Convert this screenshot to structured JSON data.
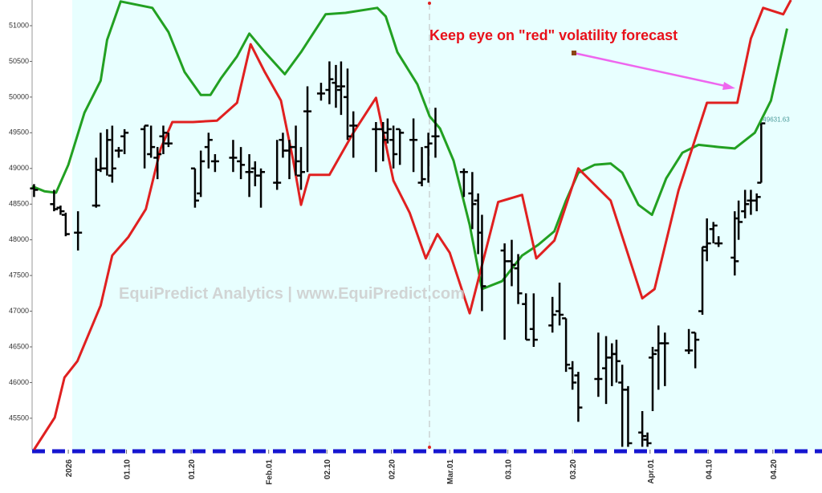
{
  "chart_data": {
    "type": "ohlc",
    "annotation": "Keep eye on \"red\" volatility forecast",
    "watermark": "EquiPredict Analytics | www.EquiPredict.com",
    "xlim": [
      -4.6,
      117.6
    ],
    "ylim": [
      45060,
      51360
    ],
    "yticks": [
      45500,
      46000,
      46500,
      47000,
      47500,
      48000,
      48500,
      49000,
      49500,
      50000,
      50500,
      51000
    ],
    "xticks": [
      {
        "value": 1,
        "label": "2026",
        "color": "#a52a2a"
      },
      {
        "value": 10,
        "label": "01.10"
      },
      {
        "value": 20,
        "label": "01.20"
      },
      {
        "value": 32,
        "label": "Feb.01",
        "color": "#a52a2a"
      },
      {
        "value": 41,
        "label": "02.10"
      },
      {
        "value": 51,
        "label": "02.20"
      },
      {
        "value": 60,
        "label": "Mar.01",
        "color": "#a52a2a"
      },
      {
        "value": 69,
        "label": "03.10"
      },
      {
        "value": 79,
        "label": "03.20"
      },
      {
        "value": 91,
        "label": "Apr.01",
        "color": "#a52a2a"
      },
      {
        "value": 100,
        "label": "04.10"
      },
      {
        "value": 110,
        "label": "04.20"
      }
    ],
    "ohlc": {
      "color": "#000000",
      "x": [
        -4.3,
        -1.2,
        -0.2,
        0.6,
        2.5,
        5.3,
        6.0,
        7.0,
        7.8,
        8.8,
        9.7,
        12.8,
        13.8,
        14.8,
        15.7,
        16.5,
        20.6,
        21.5,
        22.7,
        23.7,
        26.5,
        27.7,
        29.0,
        29.9,
        30.8,
        33.3,
        34.2,
        35.2,
        36.2,
        37.0,
        38.0,
        40.1,
        41.4,
        42.4,
        43.2,
        44.2,
        45.1,
        48.6,
        49.7,
        50.4,
        51.3,
        52.3,
        54.4,
        55.7,
        56.7,
        57.8,
        62.2,
        63.5,
        64.4,
        65.0,
        68.5,
        69.6,
        70.6,
        71.8,
        73.0,
        75.9,
        77.0,
        78.0,
        79.0,
        79.9,
        83.0,
        84.2,
        85.1,
        85.8,
        86.7,
        87.6,
        89.8,
        90.6,
        91.4,
        92.3,
        93.3,
        97.0,
        98.0,
        99.1,
        99.8,
        100.8,
        101.6,
        104.1,
        104.7,
        105.7,
        106.6,
        107.5,
        108.2
      ],
      "open": [
        48720,
        48500,
        48450,
        48350,
        48100,
        48480,
        48980,
        49000,
        48900,
        49250,
        49450,
        49550,
        49200,
        49150,
        49450,
        49350,
        49000,
        48650,
        49300,
        49100,
        49150,
        49100,
        48950,
        49000,
        48900,
        48800,
        49400,
        49250,
        49300,
        48900,
        49800,
        50050,
        50100,
        50200,
        50100,
        50000,
        49600,
        49550,
        49550,
        49500,
        49400,
        49550,
        49400,
        48800,
        49300,
        49450,
        48950,
        48650,
        48550,
        48100,
        47850,
        47700,
        47600,
        47100,
        46750,
        46800,
        47000,
        46900,
        46200,
        46100,
        46050,
        46200,
        46350,
        46400,
        46000,
        45900,
        45300,
        45200,
        46350,
        46450,
        46550,
        46450,
        46700,
        47000,
        47850,
        48150,
        47950,
        47750,
        48300,
        48400,
        48550,
        48550,
        48800
      ],
      "high": [
        48780,
        48700,
        48480,
        48380,
        48400,
        49150,
        49500,
        49550,
        49600,
        49300,
        49550,
        49600,
        49600,
        49300,
        49600,
        49500,
        49000,
        49250,
        49500,
        49200,
        49400,
        49300,
        49200,
        49100,
        49000,
        49400,
        49500,
        49400,
        49600,
        49300,
        50150,
        50200,
        50500,
        50450,
        50500,
        50400,
        49800,
        49650,
        49650,
        49700,
        49600,
        49550,
        49700,
        49300,
        49500,
        49850,
        49000,
        48950,
        48650,
        48350,
        47950,
        48000,
        47800,
        47250,
        47250,
        47200,
        47400,
        46900,
        46300,
        46150,
        46700,
        46650,
        46550,
        46600,
        46250,
        45950,
        45600,
        45300,
        46500,
        46800,
        46700,
        46750,
        46700,
        47900,
        48300,
        48250,
        48050,
        48400,
        48550,
        48700,
        48700,
        48650,
        49631.63
      ],
      "low": [
        48600,
        48400,
        48350,
        48050,
        47850,
        48450,
        48950,
        48900,
        48800,
        49150,
        49200,
        49000,
        49150,
        48850,
        49200,
        49300,
        48450,
        48600,
        49000,
        48950,
        48950,
        48850,
        48600,
        48750,
        48450,
        48700,
        49150,
        48850,
        48900,
        48700,
        48950,
        49950,
        49900,
        49850,
        49750,
        49400,
        49150,
        48950,
        49100,
        49350,
        49000,
        49050,
        48950,
        48750,
        48800,
        49150,
        48600,
        48150,
        47800,
        47000,
        46600,
        47350,
        47100,
        46600,
        46500,
        46700,
        46800,
        46150,
        45900,
        45450,
        45800,
        45700,
        45950,
        46000,
        45100,
        45100,
        45100,
        45100,
        45600,
        45900,
        45950,
        46400,
        46200,
        46950,
        47700,
        47950,
        47900,
        47500,
        48000,
        48300,
        48350,
        48400,
        48800
      ],
      "close": [
        48700,
        48430,
        48400,
        48080,
        48100,
        48480,
        49000,
        49400,
        49000,
        49250,
        49500,
        49600,
        49300,
        49200,
        49500,
        49350,
        48550,
        49100,
        49400,
        49100,
        49150,
        49050,
        48950,
        48900,
        48950,
        48800,
        49250,
        49300,
        49100,
        48950,
        49800,
        50050,
        50250,
        50150,
        50150,
        49450,
        49600,
        49550,
        49400,
        49550,
        49200,
        49500,
        49400,
        48850,
        49350,
        49450,
        48950,
        48500,
        48100,
        47350,
        47700,
        47650,
        47250,
        46600,
        46600,
        46950,
        46950,
        46250,
        46000,
        45650,
        46050,
        46350,
        46400,
        46300,
        45900,
        45150,
        45250,
        45150,
        46400,
        46550,
        46550,
        46450,
        46600,
        47900,
        47950,
        48200,
        47950,
        47700,
        48250,
        48500,
        48550,
        48600,
        49631.63
      ]
    },
    "series": [
      {
        "color": "#22a022",
        "x": [
          -4.6,
          -2.7,
          -0.9,
          1,
          3.5,
          6,
          7,
          9.1,
          14,
          16.5,
          19,
          21.5,
          23,
          24.6,
          27.1,
          29,
          31.4,
          34.5,
          37,
          40.8,
          43.9,
          48.8,
          50.1,
          51.9,
          55,
          56.9,
          58.5,
          60.6,
          63.1,
          65,
          68.1,
          71.2,
          73.7,
          76.2,
          78,
          79.9,
          82.4,
          84.9,
          86.7,
          89.2,
          91.3,
          93.5,
          96,
          98.5,
          101.6,
          104.1,
          107.2,
          109.7,
          112.2
        ],
        "values": [
          48750,
          48680,
          48660,
          49050,
          49780,
          50230,
          50800,
          51340,
          51250,
          50910,
          50350,
          50030,
          50030,
          50260,
          50570,
          50890,
          50630,
          50320,
          50630,
          51160,
          51180,
          51250,
          51130,
          50630,
          50180,
          49730,
          49560,
          49110,
          48210,
          47310,
          47420,
          47780,
          47930,
          48120,
          48550,
          48940,
          49050,
          49070,
          48940,
          48490,
          48350,
          48860,
          49220,
          49330,
          49300,
          49280,
          49500,
          49950,
          50960
        ]
      },
      {
        "color": "#e02020",
        "x": [
          -4.3,
          -1.1,
          0.4,
          2.4,
          6,
          7.8,
          10.3,
          13,
          15.3,
          17.1,
          20.3,
          24,
          27.1,
          29.2,
          31.4,
          33.9,
          35.8,
          37,
          38.3,
          41.4,
          45.1,
          48.6,
          51.3,
          53.8,
          56.3,
          58.1,
          60,
          63.1,
          67.5,
          71.2,
          73.4,
          76.2,
          79.9,
          83,
          84.9,
          89.8,
          91.7,
          95.4,
          99.8,
          104.5,
          106.6,
          108.5,
          111.6,
          112.8
        ],
        "values": [
          45060,
          45510,
          46070,
          46300,
          47080,
          47780,
          48040,
          48430,
          49280,
          49650,
          49650,
          49670,
          49920,
          50740,
          50350,
          49950,
          49110,
          48490,
          48910,
          48910,
          49500,
          49990,
          48830,
          48380,
          47740,
          48080,
          47820,
          46970,
          48530,
          48630,
          47740,
          47990,
          49000,
          48720,
          48550,
          47180,
          47310,
          48690,
          49920,
          49920,
          50820,
          51250,
          51160,
          51360
        ]
      }
    ]
  }
}
